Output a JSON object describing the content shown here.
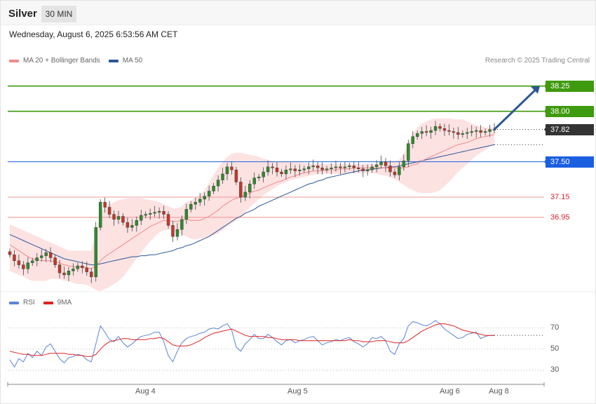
{
  "header": {
    "symbol": "Silver",
    "period_label": "30 MIN",
    "datetime": "Wednesday, August 6, 2025 6:53:56 AM CET",
    "credit": "Research © 2025 Trading Central"
  },
  "legend": {
    "main": [
      {
        "label": "MA 20 + Bollinger Bands",
        "color": "#f08a8a"
      },
      {
        "label": "MA 50",
        "color": "#2b5797"
      }
    ],
    "rsi": [
      {
        "label": "RSI",
        "color": "#5b84d6"
      },
      {
        "label": "9MA",
        "color": "#e02020"
      }
    ]
  },
  "colors": {
    "up_candle": "#2e8b2e",
    "down_candle": "#c0392b",
    "band_fill": "#fde2e2",
    "ma20": "#f08a8a",
    "ma50": "#2b5797",
    "resistance": "#3e9a0e",
    "pivot": "#1a5fe0",
    "support": "#f4a3a3",
    "arrow": "#2b5797"
  },
  "chart_data": [
    {
      "type": "candlestick",
      "title": "Silver",
      "interval": "30 MIN",
      "ylim": [
        36.22,
        38.47
      ],
      "x_ticks": [
        "Aug 4",
        "Aug 5",
        "Aug 6",
        "Aug 8"
      ],
      "last_price": 37.82,
      "levels": [
        {
          "value": 38.25,
          "label": "38.25",
          "kind": "resistance"
        },
        {
          "value": 38.0,
          "label": "38.00",
          "kind": "resistance"
        },
        {
          "value": 37.82,
          "label": "37.82",
          "kind": "last"
        },
        {
          "value": 37.5,
          "label": "37.50",
          "kind": "pivot"
        },
        {
          "value": 37.15,
          "label": "37.15",
          "kind": "support"
        },
        {
          "value": 36.95,
          "label": "36.95",
          "kind": "support"
        }
      ],
      "forecast_arrow": {
        "from": 37.82,
        "to": 38.25
      },
      "close": [
        36.58,
        36.52,
        36.48,
        36.44,
        36.5,
        36.52,
        36.55,
        36.57,
        36.6,
        36.55,
        36.48,
        36.4,
        36.38,
        36.42,
        36.44,
        36.47,
        36.45,
        36.41,
        36.36,
        36.85,
        37.1,
        37.05,
        36.98,
        36.93,
        36.96,
        36.9,
        36.85,
        36.87,
        36.92,
        36.97,
        36.98,
        36.99,
        37.0,
        37.01,
        36.98,
        36.87,
        36.76,
        36.83,
        36.93,
        37.03,
        37.08,
        37.1,
        37.13,
        37.16,
        37.21,
        37.26,
        37.32,
        37.38,
        37.45,
        37.42,
        37.3,
        37.15,
        37.2,
        37.28,
        37.34,
        37.35,
        37.4,
        37.45,
        37.44,
        37.4,
        37.38,
        37.42,
        37.43,
        37.41,
        37.42,
        37.43,
        37.45,
        37.46,
        37.44,
        37.42,
        37.43,
        37.44,
        37.45,
        37.44,
        37.45,
        37.46,
        37.44,
        37.43,
        37.41,
        37.42,
        37.45,
        37.47,
        37.5,
        37.46,
        37.4,
        37.37,
        37.45,
        37.51,
        37.68,
        37.75,
        37.78,
        37.8,
        37.79,
        37.81,
        37.85,
        37.83,
        37.81,
        37.8,
        37.79,
        37.77,
        37.78,
        37.79,
        37.8,
        37.81,
        37.79,
        37.8,
        37.82,
        37.82
      ],
      "ma20": [
        36.68,
        36.65,
        36.62,
        36.59,
        36.56,
        36.54,
        36.53,
        36.52,
        36.52,
        36.52,
        36.51,
        36.5,
        36.48,
        36.47,
        36.46,
        36.46,
        36.46,
        36.45,
        36.44,
        36.47,
        36.52,
        36.56,
        36.59,
        36.62,
        36.65,
        36.68,
        36.71,
        36.74,
        36.77,
        36.8,
        36.83,
        36.86,
        36.88,
        36.9,
        36.92,
        36.92,
        36.91,
        36.91,
        36.92,
        36.93,
        36.92,
        36.92,
        36.92,
        36.94,
        36.96,
        36.99,
        37.02,
        37.06,
        37.09,
        37.12,
        37.14,
        37.15,
        37.17,
        37.19,
        37.21,
        37.22,
        37.24,
        37.26,
        37.28,
        37.3,
        37.31,
        37.33,
        37.35,
        37.36,
        37.38,
        37.39,
        37.4,
        37.41,
        37.41,
        37.41,
        37.42,
        37.42,
        37.42,
        37.43,
        37.43,
        37.43,
        37.44,
        37.44,
        37.44,
        37.44,
        37.44,
        37.44,
        37.44,
        37.44,
        37.44,
        37.44,
        37.44,
        37.44,
        37.45,
        37.47,
        37.48,
        37.51,
        37.53,
        37.55,
        37.57,
        37.59,
        37.61,
        37.63,
        37.65,
        37.67,
        37.68,
        37.69,
        37.71,
        37.73,
        37.74,
        37.75,
        37.76,
        37.77
      ],
      "bb_upper": [
        36.88,
        36.86,
        36.84,
        36.82,
        36.8,
        36.78,
        36.76,
        36.74,
        36.72,
        36.7,
        36.68,
        36.66,
        36.64,
        36.62,
        36.62,
        36.62,
        36.62,
        36.62,
        36.62,
        36.78,
        37.0,
        37.05,
        37.08,
        37.1,
        37.12,
        37.13,
        37.14,
        37.14,
        37.14,
        37.14,
        37.13,
        37.12,
        37.11,
        37.1,
        37.08,
        37.06,
        37.04,
        37.04,
        37.06,
        37.1,
        37.12,
        37.14,
        37.17,
        37.22,
        37.29,
        37.37,
        37.44,
        37.5,
        37.55,
        37.58,
        37.59,
        37.59,
        37.58,
        37.57,
        37.56,
        37.55,
        37.53,
        37.52,
        37.51,
        37.5,
        37.5,
        37.5,
        37.5,
        37.5,
        37.5,
        37.49,
        37.48,
        37.48,
        37.48,
        37.48,
        37.48,
        37.48,
        37.48,
        37.48,
        37.48,
        37.48,
        37.48,
        37.48,
        37.48,
        37.48,
        37.48,
        37.48,
        37.49,
        37.5,
        37.5,
        37.51,
        37.52,
        37.58,
        37.68,
        37.78,
        37.84,
        37.88,
        37.9,
        37.92,
        37.93,
        37.93,
        37.93,
        37.93,
        37.92,
        37.92,
        37.92,
        37.9,
        37.88,
        37.86,
        37.85,
        37.84,
        37.84,
        37.84
      ],
      "bb_lower": [
        36.42,
        36.4,
        36.38,
        36.36,
        36.34,
        36.32,
        36.32,
        36.32,
        36.32,
        36.34,
        36.34,
        36.34,
        36.32,
        36.32,
        36.3,
        36.29,
        36.29,
        36.28,
        36.26,
        36.23,
        36.22,
        36.24,
        36.26,
        36.29,
        36.32,
        36.36,
        36.42,
        36.48,
        36.54,
        36.6,
        36.66,
        36.71,
        36.76,
        36.8,
        36.82,
        36.83,
        36.82,
        36.8,
        36.78,
        36.76,
        36.74,
        36.73,
        36.74,
        36.75,
        36.76,
        36.77,
        36.79,
        36.82,
        36.86,
        36.89,
        36.92,
        36.96,
        37.0,
        37.05,
        37.09,
        37.13,
        37.17,
        37.2,
        37.23,
        37.26,
        37.28,
        37.3,
        37.32,
        37.33,
        37.34,
        37.35,
        37.36,
        37.37,
        37.38,
        37.38,
        37.38,
        37.38,
        37.38,
        37.38,
        37.38,
        37.39,
        37.39,
        37.39,
        37.39,
        37.39,
        37.39,
        37.38,
        37.37,
        37.36,
        37.35,
        37.33,
        37.3,
        37.27,
        37.24,
        37.22,
        37.2,
        37.19,
        37.19,
        37.19,
        37.2,
        37.22,
        37.26,
        37.3,
        37.35,
        37.4,
        37.44,
        37.48,
        37.52,
        37.56,
        37.59,
        37.62,
        37.65,
        37.67
      ],
      "ma50": [
        36.78,
        36.76,
        36.74,
        36.72,
        36.7,
        36.68,
        36.66,
        36.64,
        36.62,
        36.6,
        36.58,
        36.56,
        36.54,
        36.53,
        36.52,
        36.51,
        36.5,
        36.49,
        36.48,
        36.48,
        36.49,
        36.5,
        36.51,
        36.52,
        36.53,
        36.54,
        36.55,
        36.56,
        36.56,
        36.57,
        36.57,
        36.58,
        36.58,
        36.59,
        36.6,
        36.61,
        36.62,
        36.64,
        36.65,
        36.67,
        36.68,
        36.7,
        36.72,
        36.74,
        36.76,
        36.79,
        36.82,
        36.85,
        36.88,
        36.91,
        36.94,
        36.96,
        36.99,
        37.01,
        37.03,
        37.06,
        37.08,
        37.1,
        37.12,
        37.14,
        37.16,
        37.18,
        37.2,
        37.22,
        37.24,
        37.26,
        37.28,
        37.29,
        37.31,
        37.32,
        37.34,
        37.35,
        37.36,
        37.37,
        37.38,
        37.39,
        37.4,
        37.41,
        37.42,
        37.42,
        37.43,
        37.43,
        37.44,
        37.44,
        37.45,
        37.45,
        37.46,
        37.47,
        37.48,
        37.49,
        37.5,
        37.51,
        37.52,
        37.53,
        37.54,
        37.55,
        37.56,
        37.57,
        37.58,
        37.59,
        37.6,
        37.61,
        37.62,
        37.63,
        37.64,
        37.65,
        37.66,
        37.67
      ]
    },
    {
      "type": "line",
      "title": "RSI",
      "ylim": [
        22,
        83
      ],
      "y_ticks": [
        70,
        50,
        30
      ],
      "series": [
        {
          "name": "RSI",
          "color": "#5b84d6",
          "values": [
            40,
            33,
            41,
            38,
            46,
            42,
            48,
            44,
            52,
            55,
            48,
            41,
            37,
            42,
            43,
            45,
            44,
            40,
            38,
            55,
            72,
            66,
            59,
            57,
            62,
            56,
            52,
            55,
            59,
            62,
            63,
            64,
            66,
            66,
            57,
            44,
            38,
            48,
            56,
            60,
            62,
            63,
            65,
            66,
            69,
            70,
            69,
            72,
            74,
            68,
            52,
            48,
            55,
            59,
            64,
            60,
            60,
            64,
            61,
            57,
            54,
            58,
            59,
            56,
            58,
            59,
            61,
            62,
            58,
            54,
            56,
            57,
            59,
            58,
            60,
            61,
            57,
            55,
            52,
            55,
            61,
            60,
            62,
            58,
            48,
            45,
            55,
            60,
            72,
            76,
            75,
            73,
            72,
            74,
            77,
            74,
            69,
            66,
            63,
            60,
            61,
            64,
            65,
            66,
            60,
            62,
            63,
            63
          ]
        },
        {
          "name": "9MA",
          "color": "#e02020",
          "values": [
            48,
            47,
            46,
            45,
            45,
            44,
            44,
            44,
            45,
            46,
            46,
            46,
            46,
            45,
            45,
            44,
            44,
            43,
            43,
            45,
            50,
            54,
            57,
            58,
            59,
            60,
            60,
            59,
            59,
            59,
            59,
            60,
            60,
            61,
            60,
            57,
            54,
            53,
            53,
            53,
            54,
            56,
            58,
            61,
            63,
            65,
            66,
            67,
            68,
            69,
            67,
            65,
            63,
            62,
            62,
            62,
            62,
            61,
            61,
            60,
            59,
            59,
            59,
            59,
            58,
            58,
            58,
            58,
            58,
            58,
            58,
            58,
            58,
            58,
            58,
            59,
            58,
            58,
            57,
            57,
            57,
            58,
            58,
            58,
            57,
            56,
            56,
            56,
            58,
            61,
            64,
            67,
            69,
            71,
            73,
            74,
            74,
            73,
            72,
            70,
            68,
            67,
            66,
            65,
            64,
            63,
            63,
            63
          ]
        }
      ]
    }
  ]
}
